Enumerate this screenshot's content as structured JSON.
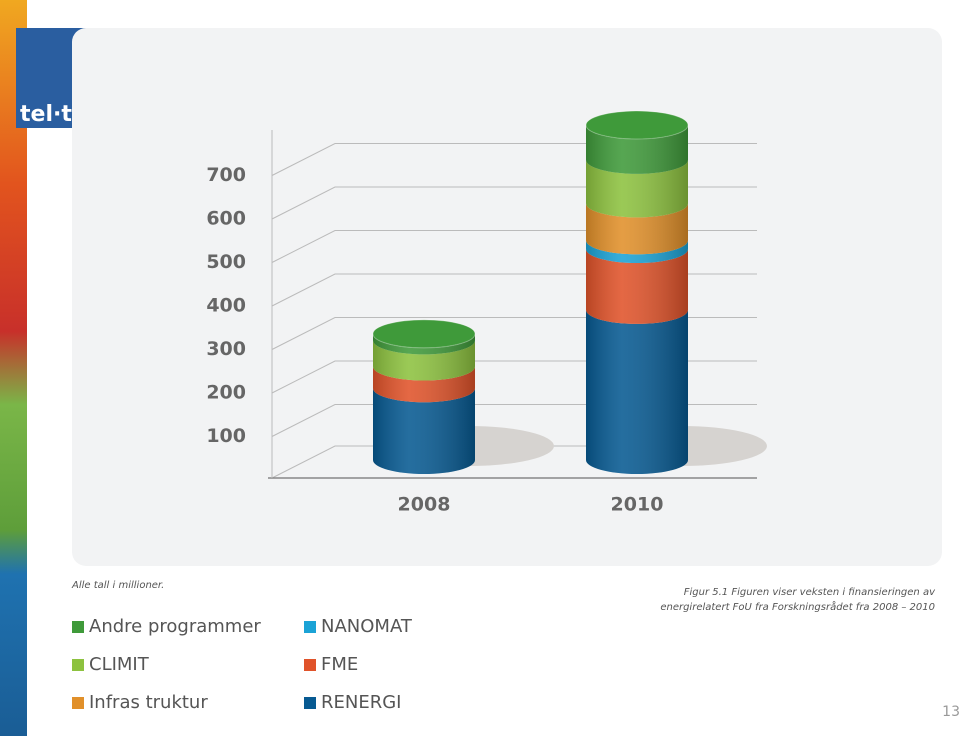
{
  "logo": "tel·te",
  "chart_data": {
    "type": "stacked-cylinder",
    "categories": [
      "2008",
      "2010"
    ],
    "series": [
      {
        "name": "Andre programmer",
        "color": "#3f9a3a",
        "values": [
          15,
          80
        ]
      },
      {
        "name": "CLIMIT",
        "color": "#8dc23f",
        "values": [
          60,
          100
        ]
      },
      {
        "name": "Infras truktur",
        "color": "#e1902a",
        "values": [
          0,
          85
        ]
      },
      {
        "name": "NANOMAT",
        "color": "#1ba3d6",
        "values": [
          0,
          20
        ]
      },
      {
        "name": "FME",
        "color": "#e0532a",
        "values": [
          50,
          140
        ]
      },
      {
        "name": "RENERGI",
        "color": "#075a92",
        "values": [
          165,
          345
        ]
      }
    ],
    "ylim": [
      0,
      800
    ],
    "yticks": [
      100,
      200,
      300,
      400,
      500,
      600,
      700
    ],
    "grid": true
  },
  "note": "Alle tall i millioner.",
  "caption": [
    "Figur 5.1 Figuren viser veksten i finansieringen av",
    "energirelatert FoU fra Forskningsrådet fra 2008 – 2010"
  ],
  "page_number": "13"
}
